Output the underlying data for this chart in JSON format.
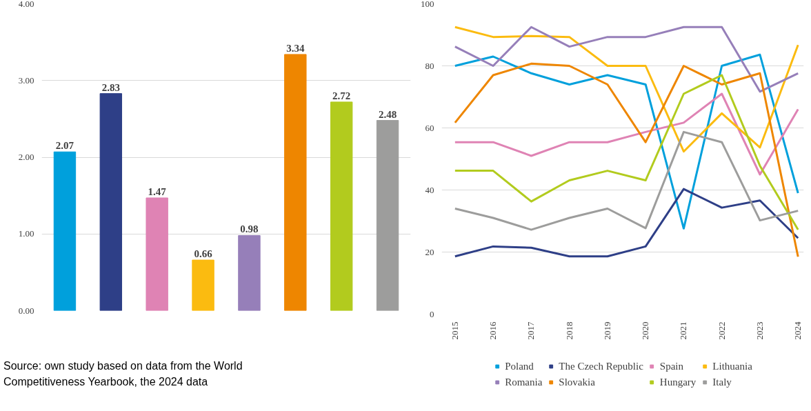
{
  "chart_data": [
    {
      "type": "bar",
      "categories": [
        null,
        null,
        null,
        null,
        null,
        null,
        null,
        null
      ],
      "values": [
        2.07,
        2.83,
        1.47,
        0.66,
        0.98,
        3.34,
        2.72,
        2.48
      ],
      "colors": [
        "#00a0dc",
        "#2e3f87",
        "#df83b4",
        "#fbbb10",
        "#967fb9",
        "#ee8600",
        "#b2cb1e",
        "#9d9d9c"
      ],
      "ylim": [
        0,
        4
      ],
      "yticks": [
        {
          "value": 0,
          "label": "0.00"
        },
        {
          "value": 1,
          "label": "1.00"
        },
        {
          "value": 2,
          "label": "2.00"
        },
        {
          "value": 3,
          "label": "3.00"
        },
        {
          "value": 4,
          "label": "4.00"
        }
      ],
      "grid": "y",
      "data_labels": true,
      "annotations": [
        "Source: own study based on data from the World Competitiveness Yearbook, the 2024 data"
      ]
    },
    {
      "type": "line",
      "categories": [
        "2015",
        "2016",
        "2017",
        "2018",
        "2019",
        "2020",
        "2021",
        "2022",
        "2023",
        "2024"
      ],
      "series": [
        {
          "name": "Poland",
          "color": "#00a0dc",
          "values": [
            80,
            83,
            77.6,
            74,
            77,
            74,
            27.6,
            80,
            83.6,
            39
          ]
        },
        {
          "name": "The Czech Republic",
          "color": "#2e3f87",
          "values": [
            18.6,
            21.8,
            21.4,
            18.6,
            18.6,
            21.8,
            40.3,
            34.3,
            36.6,
            24.5
          ]
        },
        {
          "name": "Spain",
          "color": "#df83b4",
          "values": [
            55.4,
            55.4,
            51,
            55.4,
            55.4,
            58.7,
            61.7,
            71,
            45,
            66
          ]
        },
        {
          "name": "Lithuania",
          "color": "#fbbb10",
          "values": [
            92.5,
            89.3,
            89.6,
            89.3,
            80,
            80,
            52.4,
            64.7,
            53.7,
            86.7
          ]
        },
        {
          "name": "Romania",
          "color": "#967fb9",
          "values": [
            86.2,
            80,
            92.5,
            86.2,
            89.3,
            89.3,
            92.5,
            92.5,
            71.7,
            77.6
          ]
        },
        {
          "name": "Slovakia",
          "color": "#ee8600",
          "values": [
            61.7,
            77,
            80.7,
            80,
            74,
            55.4,
            80,
            74,
            77.6,
            18.5
          ]
        },
        {
          "name": "Hungary",
          "color": "#b2cb1e",
          "values": [
            46.2,
            46.2,
            36.3,
            43.1,
            46.2,
            43.1,
            71,
            77,
            47.8,
            27.2
          ]
        },
        {
          "name": "Italy",
          "color": "#9d9d9c",
          "values": [
            34,
            31,
            27.2,
            31,
            34,
            27.7,
            58.7,
            55.4,
            30.2,
            33.3
          ]
        }
      ],
      "ylim": [
        0,
        100
      ],
      "yticks": [
        0,
        20,
        40,
        60,
        80,
        100
      ],
      "grid": "y",
      "legend": "bottom"
    }
  ]
}
